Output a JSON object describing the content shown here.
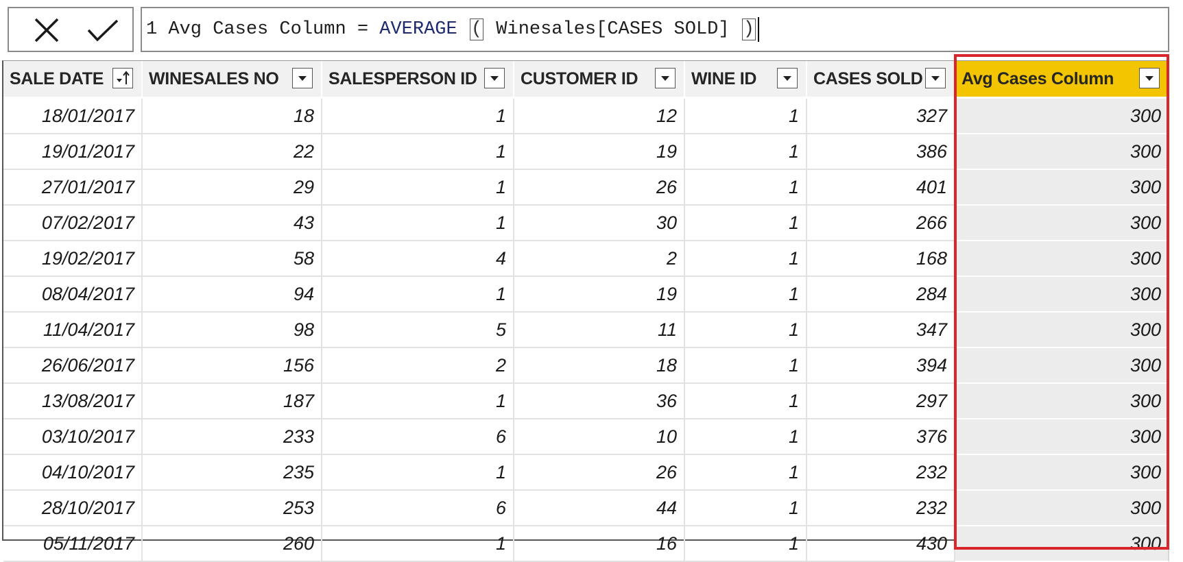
{
  "formula_bar": {
    "line_number": "1",
    "measure_name": "Avg Cases Column",
    "operator": "=",
    "function": "AVERAGE",
    "open_paren": "(",
    "argument": "Winesales[CASES SOLD]",
    "close_paren": ")",
    "cancel_icon": "close-x-icon",
    "commit_icon": "checkmark-icon"
  },
  "table": {
    "columns": [
      {
        "label": "SALE DATE",
        "icon": "sort-ascending-filter-icon"
      },
      {
        "label": "WINESALES NO",
        "icon": "dropdown-filter-icon"
      },
      {
        "label": "SALESPERSON ID",
        "icon": "dropdown-filter-icon"
      },
      {
        "label": "CUSTOMER ID",
        "icon": "dropdown-filter-icon"
      },
      {
        "label": "WINE ID",
        "icon": "dropdown-filter-icon"
      },
      {
        "label": "CASES SOLD",
        "icon": "dropdown-filter-icon"
      },
      {
        "label": "Avg Cases Column",
        "icon": "dropdown-filter-icon",
        "selected": true
      }
    ],
    "rows": [
      [
        "18/01/2017",
        "18",
        "1",
        "12",
        "1",
        "327",
        "300"
      ],
      [
        "19/01/2017",
        "22",
        "1",
        "19",
        "1",
        "386",
        "300"
      ],
      [
        "27/01/2017",
        "29",
        "1",
        "26",
        "1",
        "401",
        "300"
      ],
      [
        "07/02/2017",
        "43",
        "1",
        "30",
        "1",
        "266",
        "300"
      ],
      [
        "19/02/2017",
        "58",
        "4",
        "2",
        "1",
        "168",
        "300"
      ],
      [
        "08/04/2017",
        "94",
        "1",
        "19",
        "1",
        "284",
        "300"
      ],
      [
        "11/04/2017",
        "98",
        "5",
        "11",
        "1",
        "347",
        "300"
      ],
      [
        "26/06/2017",
        "156",
        "2",
        "18",
        "1",
        "394",
        "300"
      ],
      [
        "13/08/2017",
        "187",
        "1",
        "36",
        "1",
        "297",
        "300"
      ],
      [
        "03/10/2017",
        "233",
        "6",
        "10",
        "1",
        "376",
        "300"
      ],
      [
        "04/10/2017",
        "235",
        "1",
        "26",
        "1",
        "232",
        "300"
      ],
      [
        "28/10/2017",
        "253",
        "6",
        "44",
        "1",
        "232",
        "300"
      ],
      [
        "05/11/2017",
        "260",
        "1",
        "16",
        "1",
        "430",
        "300"
      ]
    ]
  },
  "colors": {
    "selected_header": "#f2c500",
    "highlight_border": "#d9262a",
    "header_background": "#f1f1f1",
    "calculated_cell": "#ececec"
  }
}
